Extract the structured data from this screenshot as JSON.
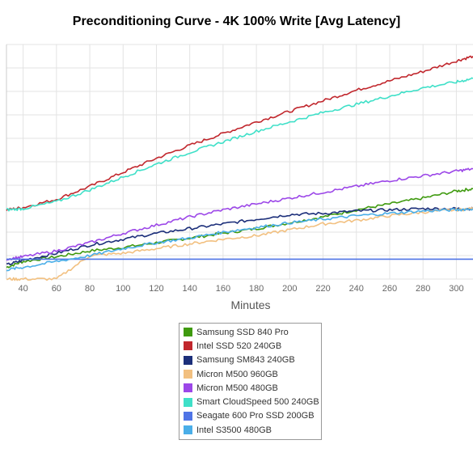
{
  "chart_data": {
    "type": "line",
    "title": "Preconditioning Curve - 4K 100% Write [Avg Latency]",
    "xlabel": "Minutes",
    "ylabel": "",
    "x_ticks": [
      40,
      60,
      80,
      100,
      120,
      140,
      160,
      180,
      200,
      220,
      240,
      260,
      280,
      300
    ],
    "xlim": [
      30,
      310
    ],
    "ylim": [
      0,
      10
    ],
    "grid": true,
    "legend_position": "bottom-center",
    "x": [
      30,
      40,
      60,
      80,
      100,
      120,
      140,
      160,
      180,
      200,
      220,
      240,
      260,
      280,
      300,
      310
    ],
    "series": [
      {
        "name": "Samsung SSD 840 Pro",
        "color": "#3f9a0f",
        "values": [
          0.5,
          0.75,
          0.95,
          1.2,
          1.35,
          1.55,
          1.75,
          1.95,
          2.15,
          2.4,
          2.65,
          2.95,
          3.2,
          3.45,
          3.75,
          3.85
        ]
      },
      {
        "name": "Intel SSD 520 240GB",
        "color": "#c1272d",
        "values": [
          2.95,
          3.05,
          3.4,
          3.95,
          4.55,
          5.15,
          5.7,
          6.2,
          6.7,
          7.15,
          7.6,
          8.05,
          8.45,
          8.85,
          9.3,
          9.5
        ]
      },
      {
        "name": "Samsung SM843 240GB",
        "color": "#1c2f7a",
        "values": [
          0.6,
          0.8,
          1.1,
          1.45,
          1.7,
          1.95,
          2.15,
          2.35,
          2.55,
          2.75,
          2.8,
          2.9,
          2.95,
          3.0,
          3.0,
          3.0
        ]
      },
      {
        "name": "Micron M500 960GB",
        "color": "#f2c080",
        "values": [
          0.0,
          0.0,
          0.0,
          1.0,
          1.1,
          1.3,
          1.5,
          1.7,
          1.85,
          2.1,
          2.35,
          2.5,
          2.7,
          2.85,
          2.95,
          3.0
        ]
      },
      {
        "name": "Micron M500 480GB",
        "color": "#9c47e8",
        "values": [
          0.85,
          0.95,
          1.2,
          1.55,
          1.95,
          2.3,
          2.65,
          2.95,
          3.2,
          3.45,
          3.7,
          3.95,
          4.2,
          4.4,
          4.6,
          4.7
        ]
      },
      {
        "name": "Smart CloudSpeed 500 240GB",
        "color": "#3fe0c8",
        "values": [
          2.95,
          3.0,
          3.3,
          3.8,
          4.35,
          4.9,
          5.4,
          5.85,
          6.3,
          6.7,
          7.1,
          7.45,
          7.8,
          8.15,
          8.4,
          8.55
        ]
      },
      {
        "name": "Seagate 600 Pro SSD 200GB",
        "color": "#4f74e6",
        "values": [
          0.85,
          0.85,
          0.85,
          0.85,
          0.85,
          0.85,
          0.85,
          0.85,
          0.85,
          0.85,
          0.85,
          0.85,
          0.85,
          0.85,
          0.85,
          0.85
        ]
      },
      {
        "name": "Intel S3500 480GB",
        "color": "#4aaee8",
        "values": [
          0.4,
          0.5,
          0.75,
          1.0,
          1.3,
          1.55,
          1.75,
          2.0,
          2.2,
          2.4,
          2.55,
          2.7,
          2.8,
          2.9,
          2.95,
          3.0
        ]
      }
    ]
  }
}
